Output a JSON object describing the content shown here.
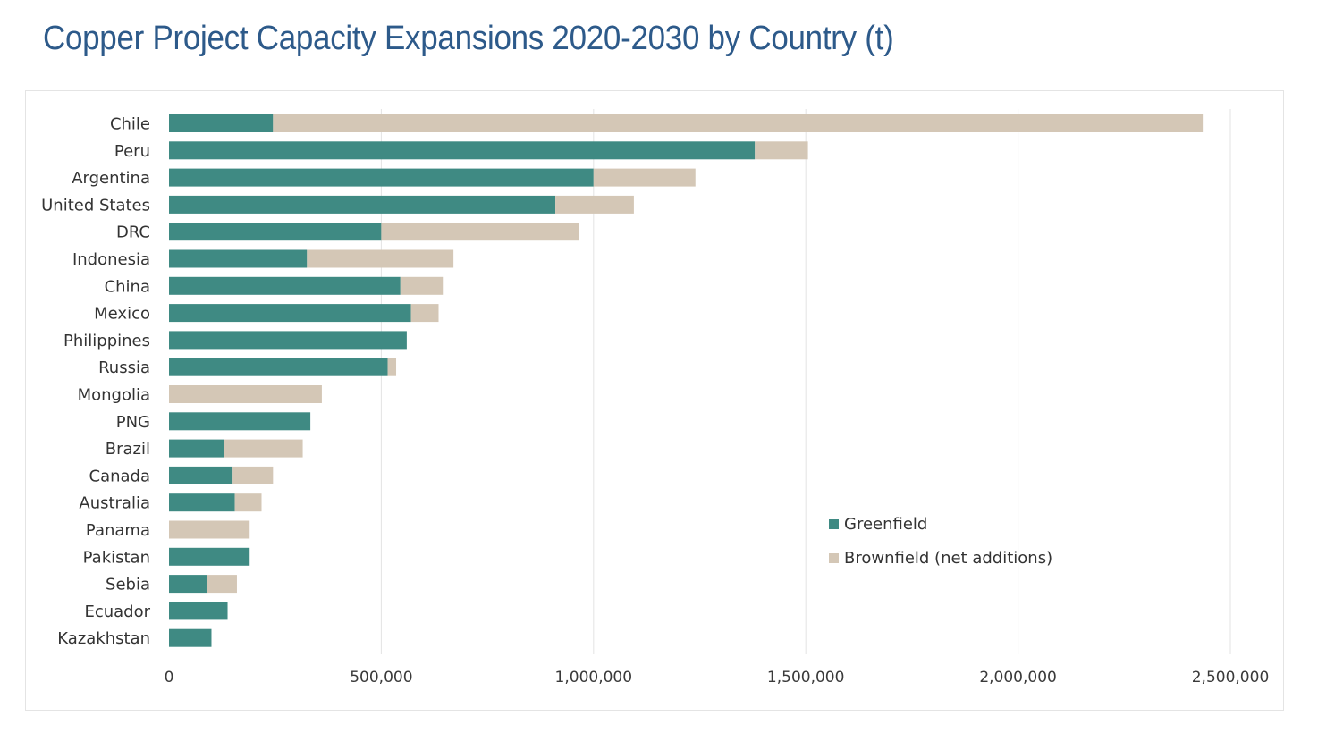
{
  "title": "Copper Project Capacity Expansions 2020-2030 by Country (t)",
  "chart_data": {
    "type": "bar",
    "orientation": "horizontal",
    "stacked": true,
    "title": "Copper Project Capacity Expansions 2020-2030 by Country (t)",
    "categories": [
      "Chile",
      "Peru",
      "Argentina",
      "United States",
      "DRC",
      "Indonesia",
      "China",
      "Mexico",
      "Philippines",
      "Russia",
      "Mongolia",
      "PNG",
      "Brazil",
      "Canada",
      "Australia",
      "Panama",
      "Pakistan",
      "Sebia",
      "Ecuador",
      "Kazakhstan"
    ],
    "series": [
      {
        "name": "Greenfield",
        "color": "#3f8a83",
        "values": [
          245000,
          1380000,
          1000000,
          910000,
          500000,
          325000,
          545000,
          570000,
          560000,
          515000,
          0,
          333000,
          130000,
          150000,
          155000,
          0,
          190000,
          90000,
          138000,
          100000
        ]
      },
      {
        "name": "Brownfield (net additions)",
        "color": "#d4c7b6",
        "values": [
          2190000,
          125000,
          240000,
          185000,
          465000,
          345000,
          100000,
          65000,
          0,
          20000,
          360000,
          0,
          185000,
          95000,
          63000,
          190000,
          0,
          70000,
          0,
          0
        ]
      }
    ],
    "xlim": [
      0,
      2500000
    ],
    "x_ticks": [
      0,
      500000,
      1000000,
      1500000,
      2000000,
      2500000
    ],
    "x_tick_labels": [
      "0",
      "500,000",
      "1,000,000",
      "1,500,000",
      "2,000,000",
      "2,500,000"
    ],
    "grid": true,
    "legend_position": "lower-right"
  }
}
